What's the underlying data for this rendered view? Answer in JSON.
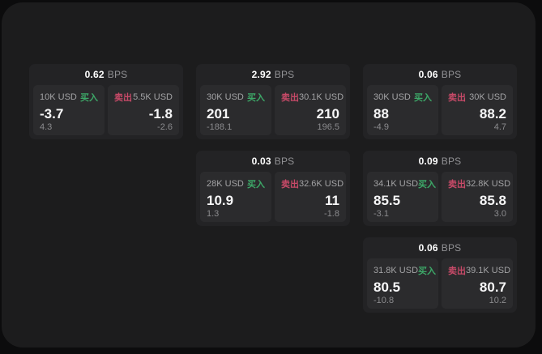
{
  "theme": {
    "outer_background": "#0c0c0d",
    "panel_background": "#1c1c1d",
    "card_background": "#232325",
    "subpanel_background": "#2b2b2d",
    "buy_color": "#3da868",
    "sell_color": "#c74a68",
    "text_primary": "#f7f7f8",
    "text_muted": "#9a9a9c"
  },
  "labels": {
    "bps": "BPS",
    "buy": "买入",
    "sell": "卖出"
  },
  "cards": [
    {
      "bps": "0.62",
      "row": 1,
      "col": 1,
      "buy": {
        "amount": "10K USD",
        "main": "-3.7",
        "sub": "4.3"
      },
      "sell": {
        "amount": "5.5K USD",
        "main": "-1.8",
        "sub": "-2.6"
      }
    },
    {
      "bps": "2.92",
      "row": 1,
      "col": 2,
      "buy": {
        "amount": "30K USD",
        "main": "201",
        "sub": "-188.1"
      },
      "sell": {
        "amount": "30.1K USD",
        "main": "210",
        "sub": "196.5"
      }
    },
    {
      "bps": "0.06",
      "row": 1,
      "col": 3,
      "buy": {
        "amount": "30K USD",
        "main": "88",
        "sub": "-4.9"
      },
      "sell": {
        "amount": "30K USD",
        "main": "88.2",
        "sub": "4.7"
      }
    },
    {
      "bps": "0.03",
      "row": 2,
      "col": 2,
      "buy": {
        "amount": "28K USD",
        "main": "10.9",
        "sub": "1.3"
      },
      "sell": {
        "amount": "32.6K USD",
        "main": "11",
        "sub": "-1.8"
      }
    },
    {
      "bps": "0.09",
      "row": 2,
      "col": 3,
      "buy": {
        "amount": "34.1K USD",
        "main": "85.5",
        "sub": "-3.1"
      },
      "sell": {
        "amount": "32.8K USD",
        "main": "85.8",
        "sub": "3.0"
      }
    },
    {
      "bps": "0.06",
      "row": 3,
      "col": 3,
      "buy": {
        "amount": "31.8K USD",
        "main": "80.5",
        "sub": "-10.8"
      },
      "sell": {
        "amount": "39.1K USD",
        "main": "80.7",
        "sub": "10.2"
      }
    }
  ]
}
